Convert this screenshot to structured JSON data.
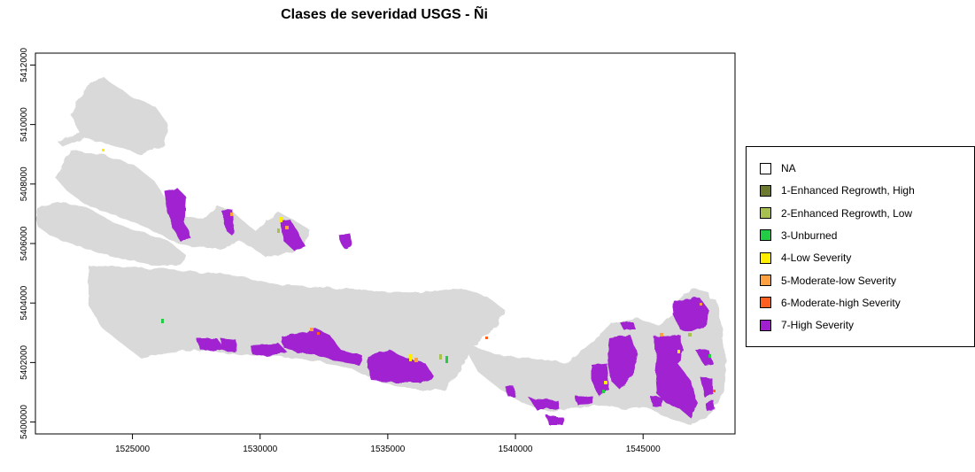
{
  "title": "Clases de severidad USGS - Ñi",
  "colors": {
    "background_terrain": "#d9d9d9",
    "nodata": "#ffffff"
  },
  "map": {
    "x_ticks": [
      1525000,
      1530000,
      1535000,
      1540000,
      1545000
    ],
    "y_ticks": [
      5400000,
      5402000,
      5404000,
      5406000,
      5408000,
      5410000,
      5412000
    ],
    "x_range": [
      1521200,
      1548600
    ],
    "y_range": [
      5399600,
      5412400
    ]
  },
  "legend": {
    "items": [
      {
        "label": "NA",
        "color": "#ffffff"
      },
      {
        "label": "1-Enhanced Regrowth, High",
        "color": "#6b7a2e"
      },
      {
        "label": "2-Enhanced Regrowth, Low",
        "color": "#a8c050"
      },
      {
        "label": "3-Unburned",
        "color": "#22cc44"
      },
      {
        "label": "4-Low Severity",
        "color": "#ffee00"
      },
      {
        "label": "5-Moderate-low Severity",
        "color": "#ffa040"
      },
      {
        "label": "6-Moderate-high Severity",
        "color": "#ff6020"
      },
      {
        "label": "7-High Severity",
        "color": "#a020d0"
      }
    ]
  }
}
